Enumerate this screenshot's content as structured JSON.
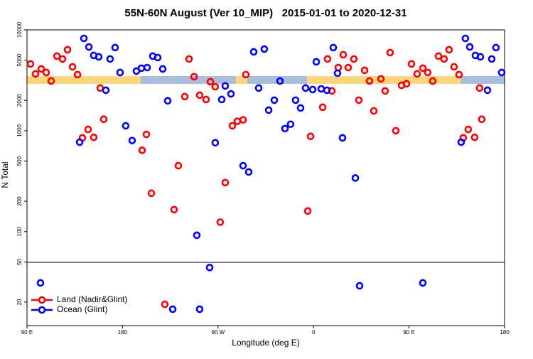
{
  "chart_data": {
    "type": "scatter",
    "title": "55N-60N August (Ver 10_MIP)   2015-01-01 to 2020-12-31",
    "x_label": "Longitude (deg E)",
    "y_label": "N Total",
    "xlim": [
      90,
      540
    ],
    "xticks": [
      {
        "value": 90,
        "label": "90 E"
      },
      {
        "value": 180,
        "label": "180"
      },
      {
        "value": 270,
        "label": "90 W"
      },
      {
        "value": 360,
        "label": "0"
      },
      {
        "value": 450,
        "label": "90 E"
      },
      {
        "value": 540,
        "label": "180"
      }
    ],
    "ylim": [
      11.7,
      10000
    ],
    "yticks": [
      20,
      50,
      100,
      200,
      500,
      1000,
      2000,
      5000,
      10000
    ],
    "yscale": "log",
    "legend": "bottom-left",
    "series": [
      {
        "name": "Land (Nadir&Glint)",
        "color": "#ff0000",
        "x": [
          93.3,
          98.0,
          103.4,
          108.1,
          112.8,
          118.2,
          123.5,
          128.2,
          132.9,
          137.6,
          142.2,
          147.6,
          152.9,
          159.0,
          162.3,
          198.5,
          202.5,
          207.2,
          219.9,
          228.6,
          232.6,
          238.7,
          242.7,
          247.4,
          252.7,
          258.7,
          262.8,
          267.4,
          272.1,
          276.8,
          283.5,
          288.2,
          293.6,
          296.2,
          354.5,
          357.2,
          368.6,
          373.2,
          377.3,
          383.3,
          388.0,
          392.7,
          398.0,
          402.7,
          408.1,
          412.7,
          416.8,
          423.5,
          427.5,
          432.2,
          437.5,
          442.9,
          447.6,
          452.3,
          457.6,
          463.0,
          467.6,
          472.3,
          477.7,
          483.0,
          487.7,
          492.4,
          497.1,
          501.1,
          505.8,
          511.8,
          516.5,
          518.5
        ],
        "values": [
          4590,
          3660,
          4100,
          3780,
          3110,
          5490,
          5140,
          6350,
          4300,
          3600,
          850,
          1030,
          860,
          2650,
          1300,
          640,
          920,
          240,
          19,
          165,
          450,
          2180,
          5140,
          3430,
          2250,
          2040,
          3060,
          2730,
          124,
          306,
          1120,
          1240,
          1280,
          3600,
          160,
          880,
          1710,
          5140,
          2480,
          4230,
          5670,
          4230,
          5140,
          2010,
          3970,
          3110,
          1570,
          3270,
          2480,
          5950,
          1000,
          2820,
          2920,
          4590,
          3660,
          4170,
          3780,
          3110,
          5490,
          5140,
          6350,
          4300,
          3600,
          850,
          1030,
          860,
          2650,
          1300
        ]
      },
      {
        "name": "Ocean (Glint)",
        "color": "#0000ff",
        "x": [
          102.7,
          139.6,
          143.6,
          148.3,
          152.9,
          157.6,
          164.3,
          168.3,
          173.0,
          177.7,
          183.0,
          189.1,
          193.1,
          197.8,
          203.2,
          208.5,
          213.2,
          217.9,
          222.6,
          227.3,
          250.0,
          252.7,
          262.1,
          267.4,
          273.5,
          276.8,
          282.2,
          293.6,
          298.9,
          303.6,
          308.3,
          313.6,
          317.7,
          323.0,
          328.4,
          333.1,
          338.4,
          343.1,
          347.8,
          352.5,
          359.2,
          362.6,
          367.2,
          372.6,
          378.6,
          382.6,
          387.3,
          399.4,
          403.4,
          463.0,
          499.1,
          503.1,
          507.2,
          512.5,
          517.2,
          523.9,
          527.9,
          531.9,
          537.3
        ],
        "values": [
          31,
          770,
          8230,
          6770,
          5580,
          5400,
          2520,
          5140,
          6670,
          3780,
          1120,
          800,
          3900,
          4170,
          4230,
          5490,
          5310,
          4100,
          1980,
          17,
          92,
          17,
          44,
          760,
          2040,
          2780,
          2320,
          450,
          390,
          6050,
          2650,
          6450,
          1600,
          2010,
          3110,
          1050,
          1160,
          2010,
          1680,
          2650,
          2560,
          4820,
          2600,
          2520,
          6670,
          3720,
          850,
          340,
          29,
          31,
          770,
          8230,
          6770,
          5580,
          5400,
          2520,
          5140,
          6670,
          3780
        ]
      }
    ]
  }
}
